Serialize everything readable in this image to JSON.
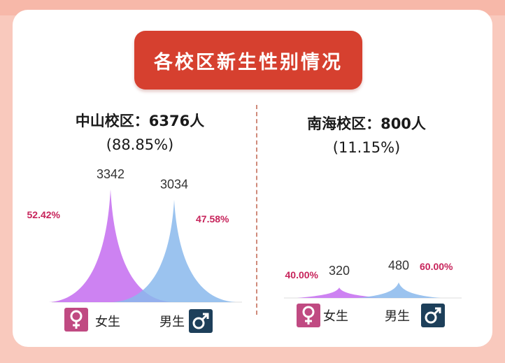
{
  "title": "各校区新生性别情况",
  "campuses": [
    {
      "name": "中山校区：6376人",
      "percent": "(88.85%)"
    },
    {
      "name": "南海校区：800人",
      "percent": "(11.15%)"
    }
  ],
  "legend": {
    "female": "女生",
    "male": "男生"
  },
  "colors": {
    "female": "#c46cf0",
    "male": "#8ab8ec",
    "pct_label": "#c7245b",
    "value_label": "#333333"
  },
  "chart_data": [
    {
      "type": "area",
      "title": "中山校区：6376人",
      "categories": [
        "女生",
        "男生"
      ],
      "values": [
        3342,
        3034
      ],
      "value_labels": [
        "3342",
        "3034"
      ],
      "percent_labels": [
        "52.42%",
        "47.58%"
      ],
      "ylim": [
        0,
        3400
      ]
    },
    {
      "type": "area",
      "title": "南海校区：800人",
      "categories": [
        "女生",
        "男生"
      ],
      "values": [
        320,
        480
      ],
      "value_labels": [
        "320",
        "480"
      ],
      "percent_labels": [
        "40.00%",
        "60.00%"
      ],
      "ylim": [
        0,
        3400
      ]
    }
  ]
}
